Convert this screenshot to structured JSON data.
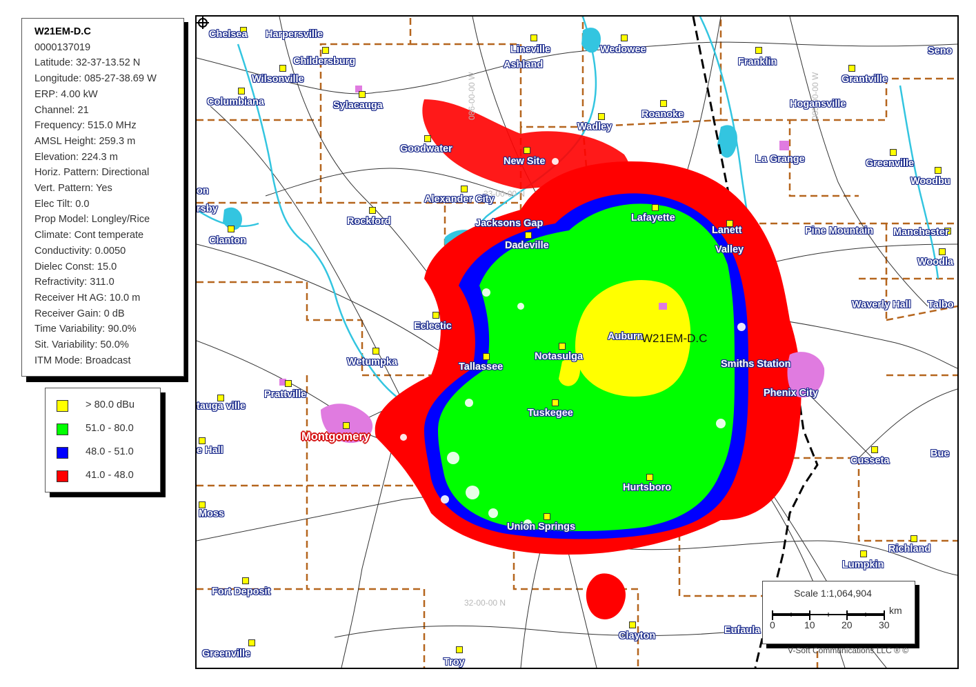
{
  "info": {
    "title": "W21EM-D.C",
    "lines": [
      "0000137019",
      "Latitude: 32-37-13.52 N",
      "Longitude: 085-27-38.69 W",
      "ERP: 4.00 kW",
      "Channel: 21",
      "Frequency: 515.0 MHz",
      "AMSL Height: 259.3 m",
      "Elevation: 224.3 m",
      "Horiz. Pattern: Directional",
      "Vert. Pattern: Yes",
      "Elec Tilt: 0.0",
      "Prop Model: Longley/Rice",
      "Climate: Cont temperate",
      "Conductivity: 0.0050",
      "Dielec Const: 15.0",
      "Refractivity: 311.0",
      "Receiver Ht AG: 10.0 m",
      "Receiver Gain: 0 dB",
      "Time Variability: 90.0%",
      "Sit. Variability: 50.0%",
      "ITM Mode: Broadcast"
    ]
  },
  "legend": {
    "items": [
      {
        "label": "> 80.0 dBu",
        "color": "#ffff00"
      },
      {
        "label": "51.0 - 80.0",
        "color": "#00ff00"
      },
      {
        "label": "48.0 - 51.0",
        "color": "#0000ff"
      },
      {
        "label": "41.0 - 48.0",
        "color": "#ff0000"
      }
    ]
  },
  "map": {
    "station_label": "W21EM-D.C",
    "grid_labels": [
      "086-00-00 W",
      "33-00-00 N",
      "085-00-00 W",
      "32-00-00 N"
    ],
    "towns": [
      "Chelsea",
      "Harpersville",
      "Lineville",
      "Wedowee",
      "Franklin",
      "Seno",
      "Childersburg",
      "Ashland",
      "Wilsonville",
      "Grantville",
      "Columbiana",
      "Sylacauga",
      "Hogansville",
      "Roanoke",
      "Wadley",
      "Goodwater",
      "New Site",
      "La Grange",
      "Greenville",
      "Woodbu",
      "on",
      "rsby",
      "Alexander City",
      "Rockford",
      "Lafayette",
      "Jacksons Gap",
      "Clanton",
      "Lanett",
      "Pine Mountain",
      "Manchester",
      "Dadeville",
      "Valley",
      "Woodla",
      "Waverly Hall",
      "Talbo",
      "Eclectic",
      "Auburn",
      "Notasulga",
      "Wetumpka",
      "Smiths Station",
      "Tallassee",
      "Phenix City",
      "Prattville",
      "tauga ville",
      "Tuskegee",
      "e Hall",
      "Cusseta",
      "Bue",
      "Hurtsboro",
      "Moss",
      "Union Springs",
      "Richland",
      "Lumpkin",
      "Fort Deposit",
      "Eufaula",
      "Clayton",
      "Greenville",
      "Troy"
    ],
    "capital": "Montgomery",
    "colors": {
      "county_line": "#b5651d",
      "water": "#33c5e0",
      "road": "#333333",
      "urban": "#e07be0",
      "state_line": "#000000"
    }
  },
  "scale": {
    "title": "Scale 1:1,064,904",
    "ticks": [
      "0",
      "10",
      "20",
      "30"
    ],
    "unit": "km"
  },
  "credit": "V-Soft Communications LLC ® ©"
}
